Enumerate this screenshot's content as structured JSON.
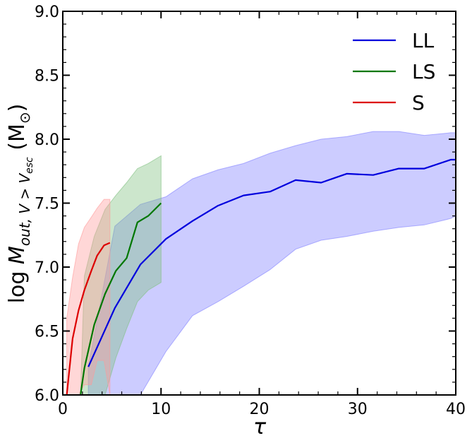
{
  "chart_data": {
    "type": "line",
    "title": "",
    "xlabel": "τ",
    "ylabel": {
      "prefix": "log ",
      "main": "M",
      "subscript": "out, V > V",
      "subsub": "esc",
      "unit": " (M",
      "unit_sub": "⊙",
      "close": ")"
    },
    "xlim": [
      0,
      40
    ],
    "ylim": [
      6.0,
      9.0
    ],
    "xticks": [
      0,
      10,
      20,
      30,
      40
    ],
    "yticks": [
      "6.0",
      "6.5",
      "7.0",
      "7.5",
      "8.0",
      "8.5",
      "9.0"
    ],
    "legend_position": "top-right",
    "series": [
      {
        "name": "LL",
        "color": "#0000dd",
        "fill": "#8080ff",
        "x": [
          2.6,
          5.3,
          7.9,
          10.5,
          13.2,
          15.8,
          18.4,
          21.1,
          23.7,
          26.3,
          28.9,
          31.6,
          34.2,
          36.8,
          39.5,
          40
        ],
        "y": [
          6.22,
          6.68,
          7.02,
          7.22,
          7.36,
          7.48,
          7.56,
          7.59,
          7.68,
          7.66,
          7.73,
          7.72,
          7.77,
          7.77,
          7.84,
          7.84
        ],
        "upper": [
          6.22,
          7.32,
          7.49,
          7.55,
          7.69,
          7.76,
          7.81,
          7.89,
          7.95,
          8.0,
          8.02,
          8.06,
          8.06,
          8.03,
          8.05,
          8.05
        ],
        "lower": [
          6.0,
          6.0,
          6.0,
          6.34,
          6.62,
          6.73,
          6.85,
          6.98,
          7.14,
          7.21,
          7.24,
          7.28,
          7.31,
          7.33,
          7.38,
          7.4
        ]
      },
      {
        "name": "LS",
        "color": "#007700",
        "fill": "#80c080",
        "x": [
          1.8,
          2.2,
          3.2,
          4.3,
          5.4,
          6.5,
          7.6,
          8.7,
          10.0
        ],
        "y": [
          6.0,
          6.21,
          6.55,
          6.79,
          6.97,
          7.07,
          7.35,
          7.4,
          7.5
        ],
        "upper": [
          6.0,
          6.93,
          7.24,
          7.45,
          7.56,
          7.66,
          7.77,
          7.81,
          7.87
        ],
        "lower": [
          6.0,
          6.0,
          6.0,
          6.0,
          6.29,
          6.52,
          6.73,
          6.82,
          6.88
        ]
      },
      {
        "name": "S",
        "color": "#dd0000",
        "fill": "#ff9a9a",
        "x": [
          0.4,
          1.0,
          1.6,
          2.2,
          2.9,
          3.5,
          4.2,
          4.8
        ],
        "y": [
          6.0,
          6.44,
          6.66,
          6.82,
          6.97,
          7.09,
          7.17,
          7.19
        ],
        "upper": [
          6.6,
          6.92,
          7.18,
          7.31,
          7.39,
          7.46,
          7.53,
          7.53
        ],
        "lower": [
          6.0,
          6.0,
          6.0,
          6.08,
          6.08,
          6.27,
          6.27,
          6.0
        ]
      }
    ]
  }
}
